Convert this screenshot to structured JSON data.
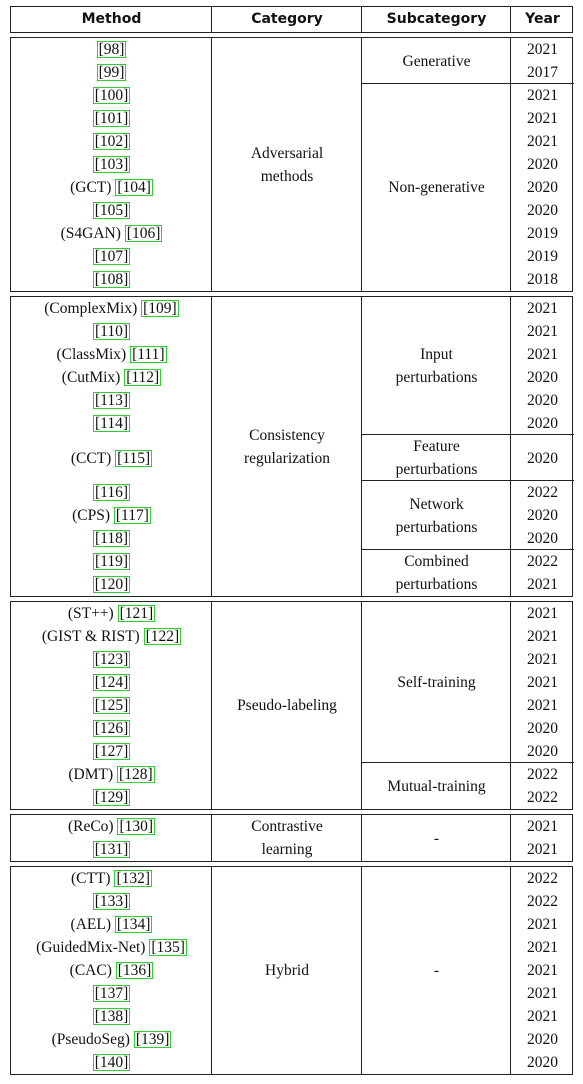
{
  "table": {
    "headers": [
      "Method",
      "Category",
      "Subcategory",
      "Year"
    ],
    "sections": [
      {
        "category": [
          "Adversarial",
          "methods"
        ],
        "groups": [
          {
            "subcategory": [
              "Generative"
            ],
            "rows": [
              {
                "name": null,
                "ref": "[98]",
                "year": "2021"
              },
              {
                "name": null,
                "ref": "[99]",
                "year": "2017"
              }
            ]
          },
          {
            "subcategory": [
              "Non-generative"
            ],
            "rows": [
              {
                "name": null,
                "ref": "[100]",
                "year": "2021"
              },
              {
                "name": null,
                "ref": "[101]",
                "year": "2021"
              },
              {
                "name": null,
                "ref": "[102]",
                "year": "2021"
              },
              {
                "name": null,
                "ref": "[103]",
                "year": "2020"
              },
              {
                "name": "(GCT)",
                "ref": "[104]",
                "year": "2020"
              },
              {
                "name": null,
                "ref": "[105]",
                "year": "2020"
              },
              {
                "name": "(S4GAN)",
                "ref": "[106]",
                "year": "2019"
              },
              {
                "name": null,
                "ref": "[107]",
                "year": "2019"
              },
              {
                "name": null,
                "ref": "[108]",
                "year": "2018"
              }
            ]
          }
        ]
      },
      {
        "category": [
          "Consistency",
          "regularization"
        ],
        "groups": [
          {
            "subcategory": [
              "Input",
              "perturbations"
            ],
            "rows": [
              {
                "name": "(ComplexMix)",
                "ref": "[109]",
                "year": "2021"
              },
              {
                "name": null,
                "ref": "[110]",
                "year": "2021"
              },
              {
                "name": "(ClassMix)",
                "ref": "[111]",
                "year": "2021"
              },
              {
                "name": "(CutMix)",
                "ref": "[112]",
                "year": "2020"
              },
              {
                "name": null,
                "ref": "[113]",
                "year": "2020"
              },
              {
                "name": null,
                "ref": "[114]",
                "year": "2020"
              }
            ]
          },
          {
            "subcategory": [
              "Feature",
              "perturbations"
            ],
            "rows": [
              {
                "name": "(CCT)",
                "ref": "[115]",
                "year": "2020"
              }
            ]
          },
          {
            "subcategory": [
              "Network",
              "perturbations"
            ],
            "rows": [
              {
                "name": null,
                "ref": "[116]",
                "year": "2022"
              },
              {
                "name": "(CPS)",
                "ref": "[117]",
                "year": "2020"
              },
              {
                "name": null,
                "ref": "[118]",
                "year": "2020"
              }
            ]
          },
          {
            "subcategory": [
              "Combined",
              "perturbations"
            ],
            "rows": [
              {
                "name": null,
                "ref": "[119]",
                "year": "2022"
              },
              {
                "name": null,
                "ref": "[120]",
                "year": "2021"
              }
            ]
          }
        ]
      },
      {
        "category": [
          "Pseudo-labeling"
        ],
        "groups": [
          {
            "subcategory": [
              "Self-training"
            ],
            "rows": [
              {
                "name": "(ST++)",
                "ref": "[121]",
                "year": "2021"
              },
              {
                "name": "(GIST & RIST)",
                "ref": "[122]",
                "year": "2021"
              },
              {
                "name": null,
                "ref": "[123]",
                "year": "2021"
              },
              {
                "name": null,
                "ref": "[124]",
                "year": "2021"
              },
              {
                "name": null,
                "ref": "[125]",
                "year": "2021"
              },
              {
                "name": null,
                "ref": "[126]",
                "year": "2020"
              },
              {
                "name": null,
                "ref": "[127]",
                "year": "2020"
              }
            ]
          },
          {
            "subcategory": [
              "Mutual-training"
            ],
            "rows": [
              {
                "name": "(DMT)",
                "ref": "[128]",
                "year": "2022"
              },
              {
                "name": null,
                "ref": "[129]",
                "year": "2022"
              }
            ]
          }
        ]
      },
      {
        "category": [
          "Contrastive",
          "learning"
        ],
        "groups": [
          {
            "subcategory": [
              "-"
            ],
            "rows": [
              {
                "name": "(ReCo)",
                "ref": "[130]",
                "year": "2021"
              },
              {
                "name": null,
                "ref": "[131]",
                "year": "2021"
              }
            ]
          }
        ]
      },
      {
        "category": [
          "Hybrid"
        ],
        "groups": [
          {
            "subcategory": [
              "-"
            ],
            "rows": [
              {
                "name": "(CTT)",
                "ref": "[132]",
                "year": "2022"
              },
              {
                "name": null,
                "ref": "[133]",
                "year": "2022"
              },
              {
                "name": "(AEL)",
                "ref": "[134]",
                "year": "2021"
              },
              {
                "name": "(GuidedMix-Net)",
                "ref": "[135]",
                "year": "2021"
              },
              {
                "name": "(CAC)",
                "ref": "[136]",
                "year": "2021"
              },
              {
                "name": null,
                "ref": "[137]",
                "year": "2021"
              },
              {
                "name": null,
                "ref": "[138]",
                "year": "2021"
              },
              {
                "name": "(PseudoSeg)",
                "ref": "[139]",
                "year": "2020"
              },
              {
                "name": null,
                "ref": "[140]",
                "year": "2020"
              }
            ]
          }
        ]
      }
    ]
  }
}
